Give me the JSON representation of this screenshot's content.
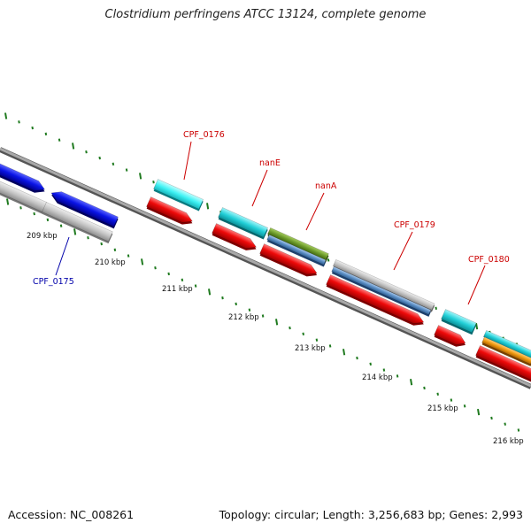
{
  "title": "Clostridium perfringens ATCC 13124, complete genome",
  "footer": {
    "accession": "Accession: NC_008261",
    "summary": "Topology: circular; Length: 3,256,683 bp; Genes: 2,993"
  },
  "colors": {
    "backbone": "#8a8a8a",
    "tick": "#1f7a1f",
    "gene_label": "#cc0000",
    "reverse_label": "#0000aa",
    "blue": "#0a14e6",
    "grey": "#c4c4c4",
    "cyan": "#22d0d8",
    "red": "#ee0a0a",
    "steel": "#5b8ec4",
    "olive": "#6c9a2a",
    "orange": "#f09a10"
  },
  "scale": {
    "labels": [
      "209 kbp",
      "210 kbp",
      "211 kbp",
      "212 kbp",
      "213 kbp",
      "214 kbp",
      "215 kbp",
      "216 kbp"
    ]
  },
  "labels": {
    "cpf0175": "CPF_0175",
    "cpf0176": "CPF_0176",
    "nanE": "nanE",
    "nanA": "nanA",
    "cpf0179": "CPF_0179",
    "cpf0180": "CPF_0180"
  }
}
